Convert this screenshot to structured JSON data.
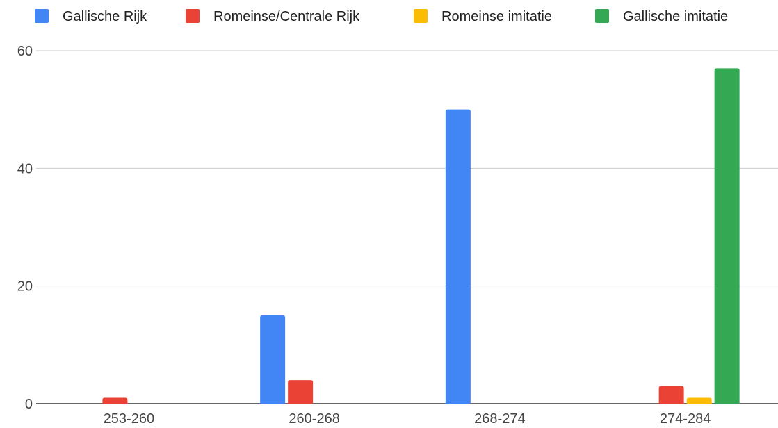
{
  "chart_data": {
    "type": "bar",
    "categories": [
      "253-260",
      "260-268",
      "268-274",
      "274-284"
    ],
    "series": [
      {
        "name": "Gallische Rijk",
        "color": "#4285f4",
        "values": [
          0,
          15,
          50,
          0
        ]
      },
      {
        "name": "Romeinse/Centrale Rijk",
        "color": "#ea4335",
        "values": [
          1,
          4,
          0,
          3
        ]
      },
      {
        "name": "Romeinse imitatie",
        "color": "#fbbc04",
        "values": [
          0,
          0,
          0,
          1
        ]
      },
      {
        "name": "Gallische imitatie",
        "color": "#34a853",
        "values": [
          0,
          0,
          0,
          57
        ]
      }
    ],
    "yticks": [
      0,
      20,
      40,
      60
    ],
    "ylim": [
      0,
      60
    ],
    "grid": true,
    "legend_position": "top"
  }
}
